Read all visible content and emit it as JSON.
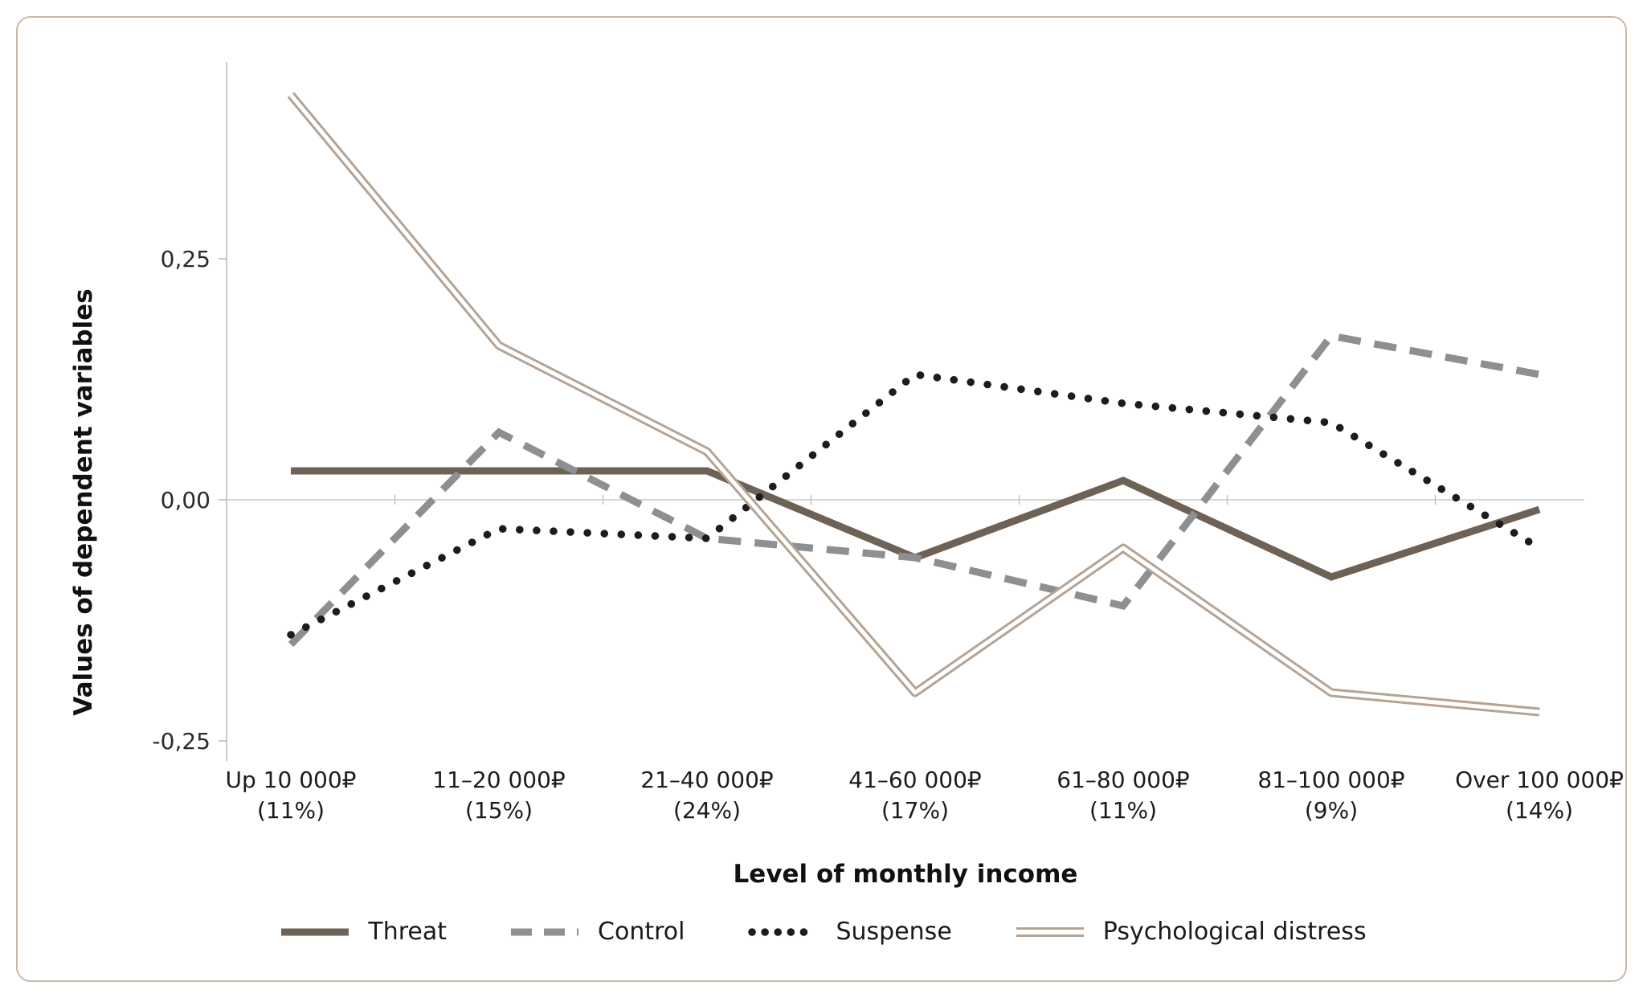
{
  "chart_data": {
    "type": "line",
    "title": "",
    "xlabel": "Level of monthly income",
    "ylabel": "Values of dependent variables",
    "ylim": [
      -0.27,
      0.45
    ],
    "grid": false,
    "legend_position": "bottom",
    "yticks": [
      {
        "v": 0.25,
        "label": "0,25"
      },
      {
        "v": 0.0,
        "label": "0,00"
      },
      {
        "v": -0.25,
        "label": "-0,25"
      }
    ],
    "categories": [
      {
        "range": "Up 10 000₽",
        "share": "(11%)"
      },
      {
        "range": "11–20 000₽",
        "share": "(15%)"
      },
      {
        "range": "21–40 000₽",
        "share": "(24%)"
      },
      {
        "range": "41–60 000₽",
        "share": "(17%)"
      },
      {
        "range": "61–80 000₽",
        "share": "(11%)"
      },
      {
        "range": "81–100 000₽",
        "share": "(9%)"
      },
      {
        "range": "Over 100 000₽",
        "share": "(14%)"
      }
    ],
    "series": [
      {
        "name": "Threat",
        "style": "solid",
        "color": "#6e6156",
        "values": [
          0.03,
          0.03,
          0.03,
          -0.06,
          0.02,
          -0.08,
          -0.01
        ]
      },
      {
        "name": "Control",
        "style": "dashed",
        "color": "#8e8f92",
        "values": [
          -0.15,
          0.07,
          -0.04,
          -0.06,
          -0.11,
          0.17,
          0.13
        ]
      },
      {
        "name": "Suspense",
        "style": "dotted",
        "color": "#1c1c1c",
        "values": [
          -0.14,
          -0.03,
          -0.04,
          0.13,
          0.1,
          0.08,
          -0.05
        ]
      },
      {
        "name": "Psychological distress",
        "style": "double",
        "color": "#b5a393",
        "values": [
          0.42,
          0.16,
          0.05,
          -0.2,
          -0.05,
          -0.2,
          -0.22
        ]
      }
    ],
    "axis_colors": {
      "axis_line": "#b9b9b9",
      "zero_line": "#c9c9c9",
      "tick": "#c2c2c2"
    }
  }
}
